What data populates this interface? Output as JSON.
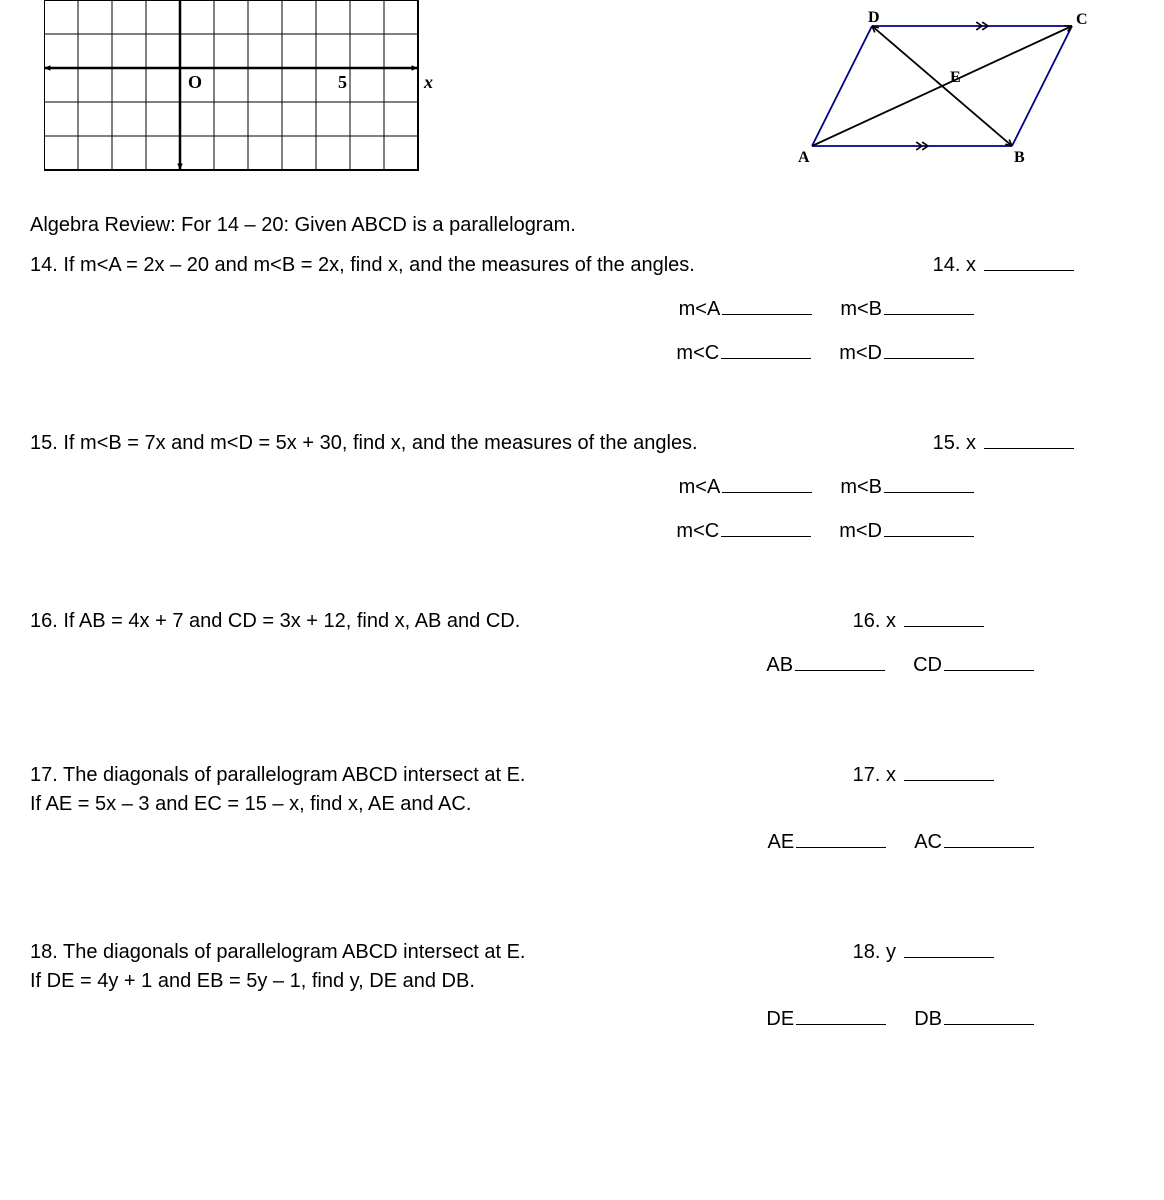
{
  "grid": {
    "cols": 11,
    "rows": 5,
    "origin_col": 4,
    "origin_row": 2,
    "x_tick_col": 9,
    "x_tick_label": "5",
    "O_label": "O",
    "x_label": "x",
    "cell": 34,
    "border_color": "#000000",
    "line_width": 1
  },
  "parallelogram": {
    "A": "A",
    "B": "B",
    "C": "C",
    "D": "D",
    "E": "E",
    "points": {
      "A": [
        0,
        120
      ],
      "B": [
        200,
        120
      ],
      "D": [
        60,
        0
      ],
      "C": [
        260,
        0
      ],
      "E": [
        130,
        60
      ]
    },
    "side_color": "#000080",
    "diag_color": "#000000"
  },
  "instructions": "Algebra Review:  For 14 – 20:  Given ABCD is a parallelogram.",
  "q14": {
    "text": "14. If m<A = 2x – 20 and m<B = 2x, find x, and the measures of the angles.",
    "right_label": "14. x",
    "mA": "m<A",
    "mB": "m<B",
    "mC": "m<C",
    "mD": "m<D"
  },
  "q15": {
    "text": "15. If m<B = 7x and m<D = 5x + 30, find x, and the measures of the angles.",
    "right_label": "15. x",
    "mA": "m<A",
    "mB": "m<B",
    "mC": "m<C",
    "mD": "m<D"
  },
  "q16": {
    "text": "16. If AB = 4x + 7 and CD = 3x + 12, find x, AB and CD.",
    "right_label": "16. x",
    "AB": "AB",
    "CD": "CD"
  },
  "q17": {
    "line1": "17. The diagonals of parallelogram ABCD intersect at E.",
    "line2": "If AE = 5x – 3 and EC = 15 – x, find x, AE and AC.",
    "right_label": "17. x",
    "AE": "AE",
    "AC": "AC"
  },
  "q18": {
    "line1": "18. The diagonals of parallelogram ABCD intersect at E.",
    "line2": "If DE = 4y + 1 and EB = 5y – 1, find y, DE and DB.",
    "right_label": "18. y",
    "DE": "DE",
    "DB": "DB"
  }
}
